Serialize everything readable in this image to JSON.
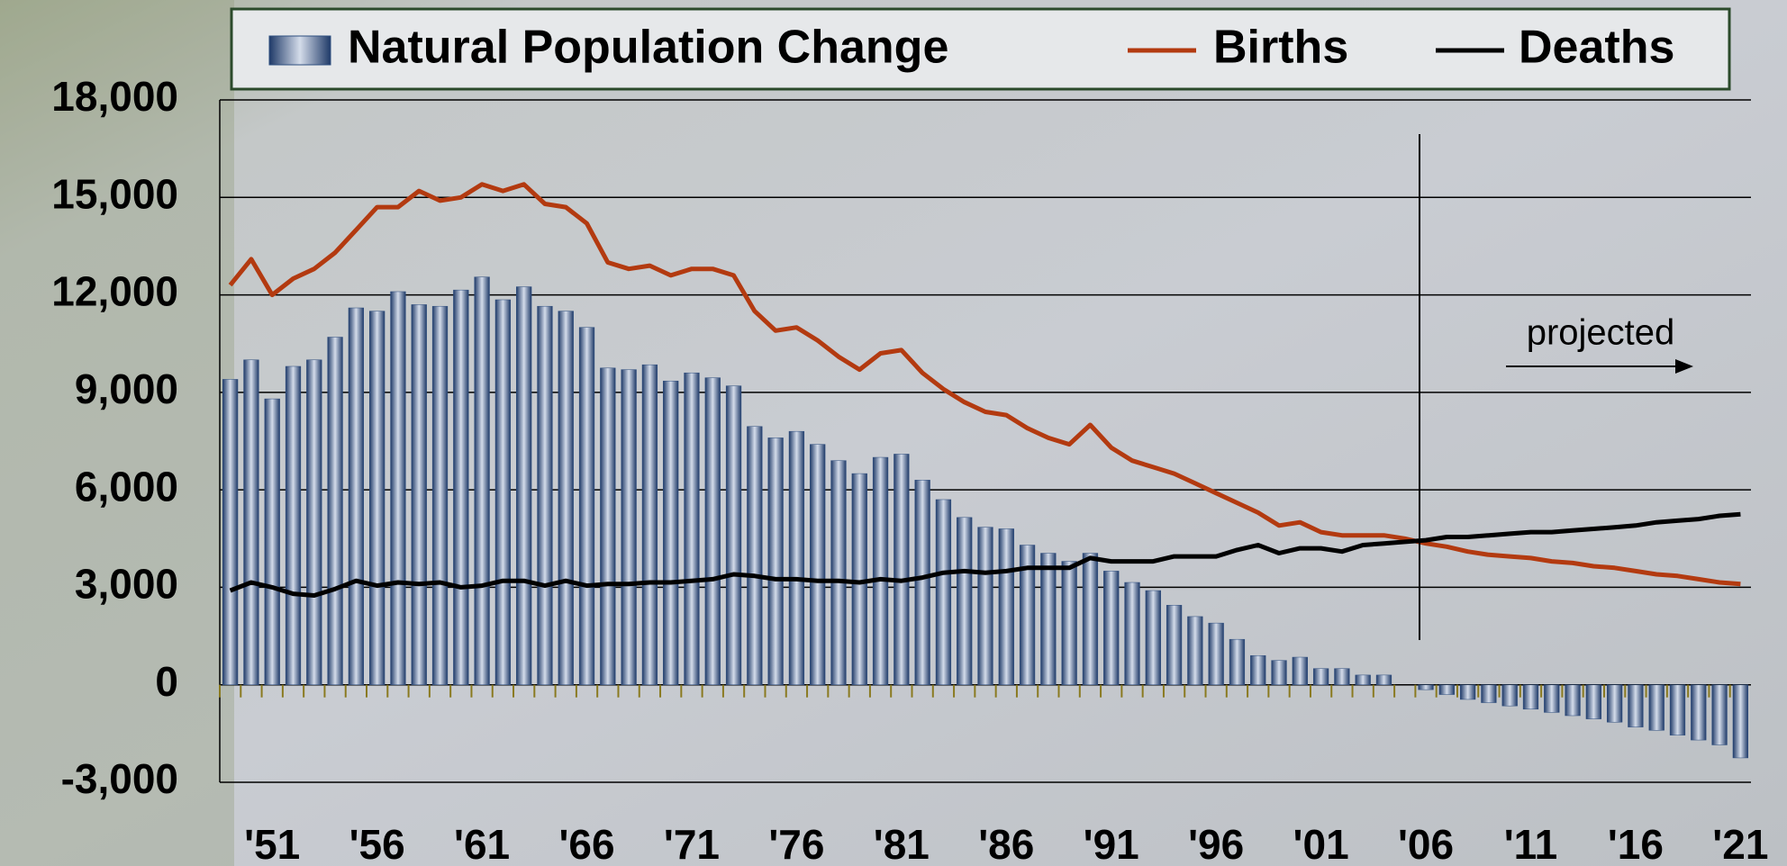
{
  "chart_data": {
    "type": "bar-line",
    "legend": "top",
    "grid": true,
    "ylim": [
      -3000,
      18000
    ],
    "yticks": [
      {
        "value": -3000,
        "label": "-3,000"
      },
      0,
      {
        "value": 3000,
        "label": "3,000"
      },
      {
        "value": 6000,
        "label": "6,000"
      },
      {
        "value": 9000,
        "label": "9,000"
      },
      {
        "value": 12000,
        "label": "12,000"
      },
      {
        "value": 15000,
        "label": "15,000"
      },
      {
        "value": 18000,
        "label": "18,000"
      }
    ],
    "annotation": "projected",
    "categories": [
      null,
      null,
      "'51",
      null,
      null,
      null,
      null,
      "'56",
      null,
      null,
      null,
      null,
      "'61",
      null,
      null,
      null,
      null,
      "'66",
      null,
      null,
      null,
      null,
      "'71",
      null,
      null,
      null,
      null,
      "'76",
      null,
      null,
      null,
      null,
      "'81",
      null,
      null,
      null,
      null,
      "'86",
      null,
      null,
      null,
      null,
      "'91",
      null,
      null,
      null,
      null,
      "'96",
      null,
      null,
      null,
      null,
      "'01",
      null,
      null,
      null,
      null,
      "'06",
      null,
      null,
      null,
      null,
      "'11",
      null,
      null,
      null,
      null,
      "'16",
      null,
      null,
      null,
      null,
      "'21"
    ],
    "series": [
      {
        "name": "Natural Population Change",
        "type": "bar",
        "color": "#2f4f80",
        "values": [
          9400,
          10000,
          8800,
          9800,
          10000,
          10700,
          11600,
          11500,
          12100,
          11700,
          11650,
          12150,
          12550,
          11850,
          12250,
          11650,
          11500,
          11000,
          9750,
          9700,
          9850,
          9350,
          9600,
          9450,
          9200,
          7950,
          7600,
          7800,
          7400,
          6900,
          6500,
          7000,
          7100,
          6300,
          5700,
          5150,
          4850,
          4800,
          4300,
          4050,
          3800,
          4050,
          3500,
          3150,
          2900,
          2450,
          2100,
          1900,
          1400,
          900,
          750,
          850,
          500,
          500,
          300,
          300,
          0,
          -150,
          -300,
          -450,
          -550,
          -650,
          -750,
          -850,
          -950,
          -1050,
          -1150,
          -1300,
          -1400,
          -1550,
          -1700,
          -1850,
          -2250
        ]
      },
      {
        "name": "Births",
        "type": "line",
        "color": "#b33a10",
        "values": [
          12300,
          13100,
          12000,
          12500,
          12800,
          13300,
          14000,
          14700,
          14700,
          15200,
          14900,
          15000,
          15400,
          15200,
          15400,
          14800,
          14700,
          14200,
          13000,
          12800,
          12900,
          12600,
          12800,
          12800,
          12600,
          11500,
          10900,
          11000,
          10600,
          10100,
          9700,
          10200,
          10300,
          9600,
          9100,
          8700,
          8400,
          8300,
          7900,
          7600,
          7400,
          8000,
          7300,
          6900,
          6700,
          6500,
          6200,
          5900,
          5600,
          5300,
          4900,
          5000,
          4700,
          4600,
          4600,
          4600,
          4500,
          4350,
          4250,
          4100,
          4000,
          3950,
          3900,
          3800,
          3750,
          3650,
          3600,
          3500,
          3400,
          3350,
          3250,
          3150,
          3100
        ]
      },
      {
        "name": "Deaths",
        "type": "line",
        "color": "#000000",
        "values": [
          2900,
          3150,
          3000,
          2800,
          2750,
          2950,
          3200,
          3050,
          3150,
          3100,
          3150,
          3000,
          3050,
          3200,
          3200,
          3050,
          3200,
          3050,
          3100,
          3100,
          3150,
          3150,
          3200,
          3250,
          3400,
          3350,
          3250,
          3250,
          3200,
          3200,
          3150,
          3250,
          3200,
          3300,
          3450,
          3500,
          3450,
          3500,
          3600,
          3600,
          3600,
          3900,
          3800,
          3800,
          3800,
          3950,
          3950,
          3950,
          4150,
          4300,
          4050,
          4200,
          4200,
          4100,
          4300,
          4350,
          4400,
          4450,
          4550,
          4550,
          4600,
          4650,
          4700,
          4700,
          4750,
          4800,
          4850,
          4900,
          5000,
          5050,
          5100,
          5200,
          5250
        ]
      }
    ]
  }
}
